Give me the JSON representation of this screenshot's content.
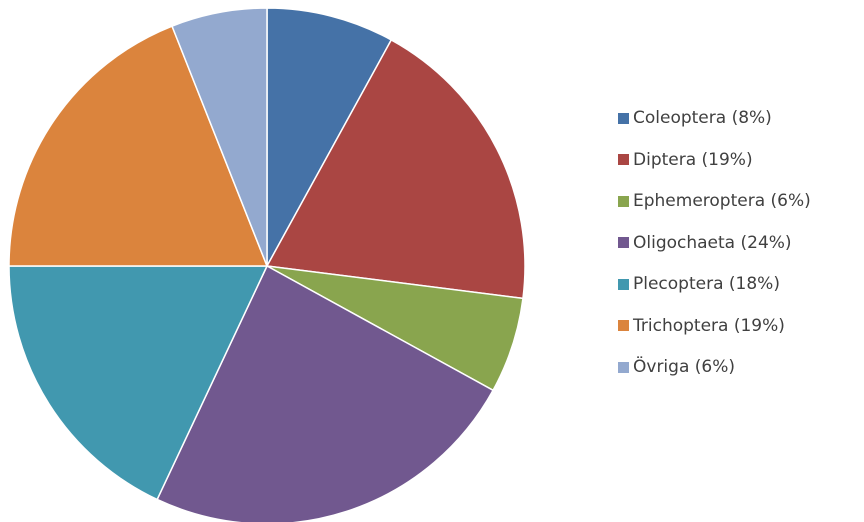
{
  "chart_data": {
    "type": "pie",
    "title": "",
    "start_angle_deg": 0,
    "direction": "clockwise",
    "legend_position": "right",
    "slices": [
      {
        "label": "Coleoptera (8%)",
        "value": 8,
        "color": "#4572A7"
      },
      {
        "label": "Diptera (19%)",
        "value": 19,
        "color": "#AA4643"
      },
      {
        "label": "Ephemeroptera (6%)",
        "value": 6,
        "color": "#89A54E"
      },
      {
        "label": "Oligochaeta (24%)",
        "value": 24,
        "color": "#71588F"
      },
      {
        "label": "Plecoptera (18%)",
        "value": 18,
        "color": "#4198AF"
      },
      {
        "label": "Trichoptera (19%)",
        "value": 19,
        "color": "#DB843D"
      },
      {
        "label": "Övriga (6%)",
        "value": 6,
        "color": "#93A9CF"
      }
    ]
  }
}
